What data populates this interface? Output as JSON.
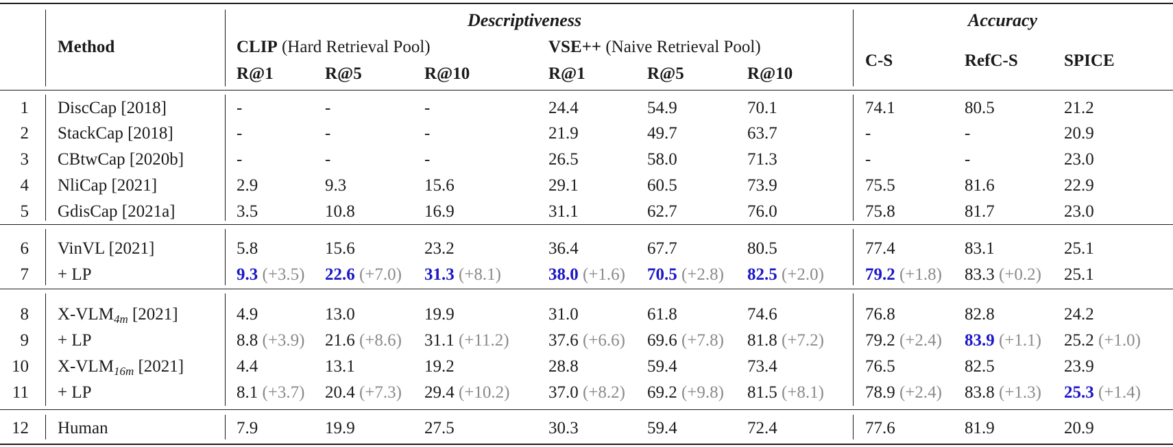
{
  "header": {
    "method": "Method",
    "group_descriptiveness": "Descriptiveness",
    "group_accuracy": "Accuracy",
    "clip_bold": "CLIP",
    "clip_rest": "(Hard Retrieval Pool)",
    "vse_bold": "VSE++",
    "vse_rest": "(Naive Retrieval Pool)",
    "r1": "R@1",
    "r5": "R@5",
    "r10": "R@10",
    "cs": "C-S",
    "refcs": "RefC-S",
    "spice": "SPICE"
  },
  "rows": [
    {
      "idx": "1",
      "name": "DiscCap [2018]",
      "sub": "",
      "suffix": "",
      "cells": [
        {
          "v": "-"
        },
        {
          "v": "-"
        },
        {
          "v": "-"
        },
        {
          "v": "24.4"
        },
        {
          "v": "54.9"
        },
        {
          "v": "70.1"
        },
        {
          "v": "74.1"
        },
        {
          "v": "80.5"
        },
        {
          "v": "21.2"
        }
      ]
    },
    {
      "idx": "2",
      "name": "StackCap [2018]",
      "sub": "",
      "suffix": "",
      "cells": [
        {
          "v": "-"
        },
        {
          "v": "-"
        },
        {
          "v": "-"
        },
        {
          "v": "21.9"
        },
        {
          "v": "49.7"
        },
        {
          "v": "63.7"
        },
        {
          "v": "-"
        },
        {
          "v": "-"
        },
        {
          "v": "20.9"
        }
      ]
    },
    {
      "idx": "3",
      "name": "CBtwCap [2020b]",
      "sub": "",
      "suffix": "",
      "cells": [
        {
          "v": "-"
        },
        {
          "v": "-"
        },
        {
          "v": "-"
        },
        {
          "v": "26.5"
        },
        {
          "v": "58.0"
        },
        {
          "v": "71.3"
        },
        {
          "v": "-"
        },
        {
          "v": "-"
        },
        {
          "v": "23.0"
        }
      ]
    },
    {
      "idx": "4",
      "name": "NliCap [2021]",
      "sub": "",
      "suffix": "",
      "cells": [
        {
          "v": "2.9"
        },
        {
          "v": "9.3"
        },
        {
          "v": "15.6"
        },
        {
          "v": "29.1"
        },
        {
          "v": "60.5"
        },
        {
          "v": "73.9"
        },
        {
          "v": "75.5"
        },
        {
          "v": "81.6"
        },
        {
          "v": "22.9"
        }
      ]
    },
    {
      "idx": "5",
      "name": "GdisCap [2021a]",
      "sub": "",
      "suffix": "",
      "cells": [
        {
          "v": "3.5"
        },
        {
          "v": "10.8"
        },
        {
          "v": "16.9"
        },
        {
          "v": "31.1"
        },
        {
          "v": "62.7"
        },
        {
          "v": "76.0"
        },
        {
          "v": "75.8"
        },
        {
          "v": "81.7"
        },
        {
          "v": "23.0"
        }
      ]
    },
    {
      "idx": "6",
      "name": "VinVL [2021]",
      "sub": "",
      "suffix": "",
      "cells": [
        {
          "v": "5.8"
        },
        {
          "v": "15.6"
        },
        {
          "v": "23.2"
        },
        {
          "v": "36.4"
        },
        {
          "v": "67.7"
        },
        {
          "v": "80.5"
        },
        {
          "v": "77.4"
        },
        {
          "v": "83.1"
        },
        {
          "v": "25.1"
        }
      ]
    },
    {
      "idx": "7",
      "name": "+ LP",
      "sub": "",
      "suffix": "",
      "cells": [
        {
          "v": "9.3",
          "d": "(+3.5)",
          "b": true
        },
        {
          "v": "22.6",
          "d": "(+7.0)",
          "b": true
        },
        {
          "v": "31.3",
          "d": "(+8.1)",
          "b": true
        },
        {
          "v": "38.0",
          "d": "(+1.6)",
          "b": true
        },
        {
          "v": "70.5",
          "d": "(+2.8)",
          "b": true
        },
        {
          "v": "82.5",
          "d": "(+2.0)",
          "b": true
        },
        {
          "v": "79.2",
          "d": "(+1.8)",
          "b": true
        },
        {
          "v": "83.3",
          "d": "(+0.2)"
        },
        {
          "v": "25.1"
        }
      ]
    },
    {
      "idx": "8",
      "name": "X-VLM",
      "sub": "4m",
      "suffix": " [2021]",
      "cells": [
        {
          "v": "4.9"
        },
        {
          "v": "13.0"
        },
        {
          "v": "19.9"
        },
        {
          "v": "31.0"
        },
        {
          "v": "61.8"
        },
        {
          "v": "74.6"
        },
        {
          "v": "76.8"
        },
        {
          "v": "82.8"
        },
        {
          "v": "24.2"
        }
      ]
    },
    {
      "idx": "9",
      "name": "+ LP",
      "sub": "",
      "suffix": "",
      "cells": [
        {
          "v": "8.8",
          "d": "(+3.9)"
        },
        {
          "v": "21.6",
          "d": "(+8.6)"
        },
        {
          "v": "31.1",
          "d": "(+11.2)"
        },
        {
          "v": "37.6",
          "d": "(+6.6)"
        },
        {
          "v": "69.6",
          "d": "(+7.8)"
        },
        {
          "v": "81.8",
          "d": "(+7.2)"
        },
        {
          "v": "79.2",
          "d": "(+2.4)"
        },
        {
          "v": "83.9",
          "d": "(+1.1)",
          "b": true
        },
        {
          "v": "25.2",
          "d": "(+1.0)"
        }
      ]
    },
    {
      "idx": "10",
      "name": "X-VLM",
      "sub": "16m",
      "suffix": " [2021]",
      "cells": [
        {
          "v": "4.4"
        },
        {
          "v": "13.1"
        },
        {
          "v": "19.2"
        },
        {
          "v": "28.8"
        },
        {
          "v": "59.4"
        },
        {
          "v": "73.4"
        },
        {
          "v": "76.5"
        },
        {
          "v": "82.5"
        },
        {
          "v": "23.9"
        }
      ]
    },
    {
      "idx": "11",
      "name": "+ LP",
      "sub": "",
      "suffix": "",
      "cells": [
        {
          "v": "8.1",
          "d": "(+3.7)"
        },
        {
          "v": "20.4",
          "d": "(+7.3)"
        },
        {
          "v": "29.4",
          "d": "(+10.2)"
        },
        {
          "v": "37.0",
          "d": "(+8.2)"
        },
        {
          "v": "69.2",
          "d": "(+9.8)"
        },
        {
          "v": "81.5",
          "d": "(+8.1)"
        },
        {
          "v": "78.9",
          "d": "(+2.4)"
        },
        {
          "v": "83.8",
          "d": "(+1.3)"
        },
        {
          "v": "25.3",
          "d": "(+1.4)",
          "b": true
        }
      ]
    },
    {
      "idx": "12",
      "name": "Human",
      "sub": "",
      "suffix": "",
      "cells": [
        {
          "v": "7.9"
        },
        {
          "v": "19.9"
        },
        {
          "v": "27.5"
        },
        {
          "v": "30.3"
        },
        {
          "v": "59.4"
        },
        {
          "v": "72.4"
        },
        {
          "v": "77.6"
        },
        {
          "v": "81.9"
        },
        {
          "v": "20.9"
        }
      ]
    }
  ]
}
